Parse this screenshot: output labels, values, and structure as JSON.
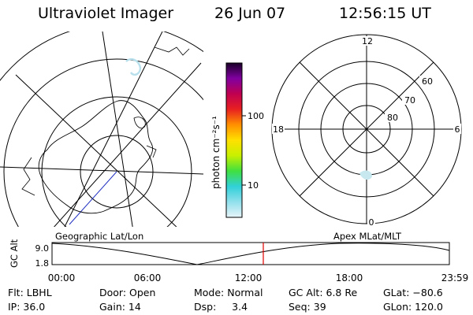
{
  "header": {
    "instrument": "Ultraviolet Imager",
    "date": "26 Jun 07",
    "time": "12:56:15 UT"
  },
  "colorbar": {
    "unit_label": "photon cm⁻²s⁻¹",
    "ticks": [
      "100",
      "10"
    ],
    "stops": [
      "#e8f4f8",
      "#90e0ec",
      "#30d0d8",
      "#40e040",
      "#c8f000",
      "#ffe000",
      "#ff9000",
      "#e82020",
      "#c00050",
      "#8000a0",
      "#1a0028"
    ]
  },
  "polar_plot": {
    "clock_labels": {
      "top": "12",
      "left": "18",
      "right": "6",
      "bottom": "0"
    },
    "lat_labels": [
      "60",
      "70",
      "80"
    ]
  },
  "labels": {
    "left_map": "Geographic Lat/Lon",
    "right_map": "Apex MLat/MLT"
  },
  "alt_plot": {
    "axis_label": "GC Alt",
    "y_ticks": [
      "9.0",
      "1.8"
    ],
    "x_ticks": [
      "00:00",
      "06:00",
      "12:00",
      "18:00",
      "23:59"
    ],
    "marker_color": "#e00000"
  },
  "info": {
    "row1": [
      {
        "key": "flt",
        "text": "Flt: LBHL"
      },
      {
        "key": "door",
        "text": "Door: Open"
      },
      {
        "key": "mode",
        "text": "Mode: Normal"
      },
      {
        "key": "gcalt",
        "text": "GC Alt: 6.8 Re"
      },
      {
        "key": "glat",
        "text": "GLat: −80.6"
      }
    ],
    "row2": [
      {
        "key": "ip",
        "text": "IP: 36.0"
      },
      {
        "key": "gain",
        "text": "Gain: 14"
      },
      {
        "key": "dsp",
        "text": "Dsp:     3.4"
      },
      {
        "key": "seq",
        "text": "Seq: 39"
      },
      {
        "key": "glon",
        "text": "GLon: 120.0"
      }
    ]
  }
}
